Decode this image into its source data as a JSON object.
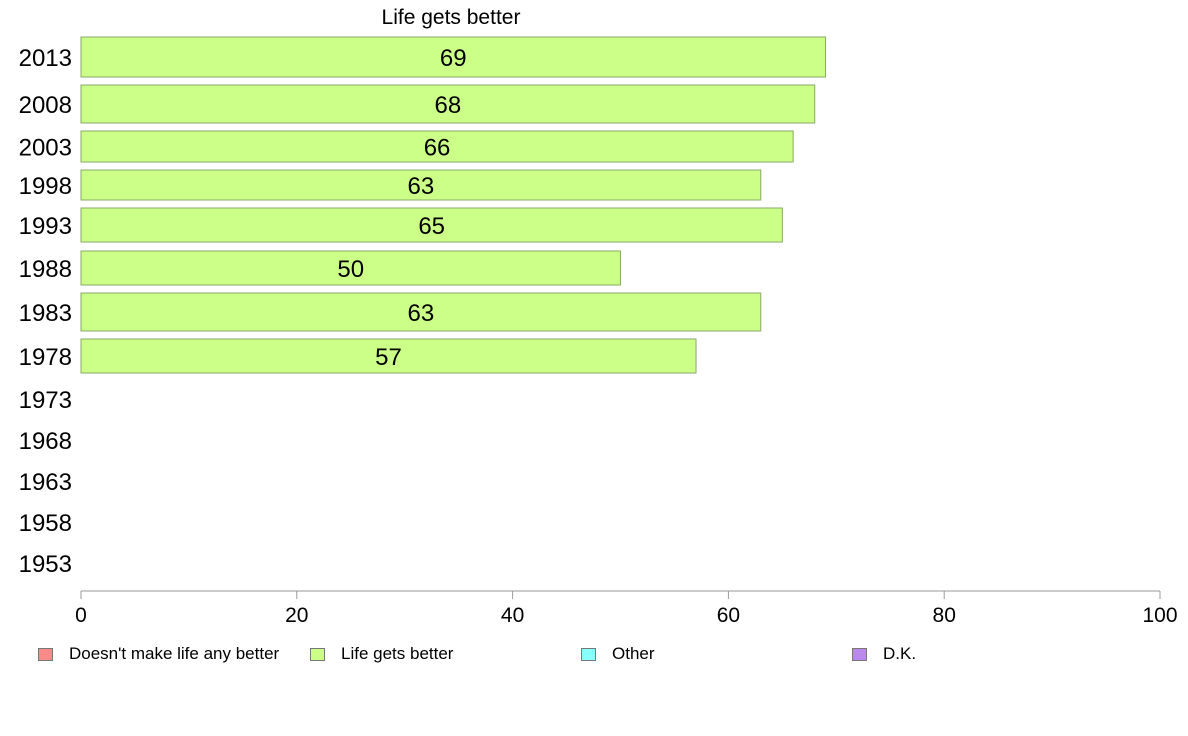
{
  "chart_data": {
    "type": "bar",
    "orientation": "horizontal",
    "title": "Life gets better",
    "categories": [
      "2013",
      "2008",
      "2003",
      "1998",
      "1993",
      "1988",
      "1983",
      "1978",
      "1973",
      "1968",
      "1963",
      "1958",
      "1953"
    ],
    "series": [
      {
        "name": "Life gets better",
        "values": [
          69,
          68,
          66,
          63,
          65,
          50,
          63,
          57,
          null,
          null,
          null,
          null,
          null
        ]
      }
    ],
    "xlim": [
      0,
      100
    ],
    "xticks": [
      0,
      20,
      40,
      60,
      80,
      100
    ],
    "grid": false,
    "legend_position": "bottom",
    "legend": [
      {
        "label": "Doesn't make life any better",
        "color": "#f88a8a"
      },
      {
        "label": "Life gets better",
        "color": "#ccff88"
      },
      {
        "label": "Other",
        "color": "#88ffff"
      },
      {
        "label": "D.K.",
        "color": "#bb88ee"
      }
    ],
    "bar_color": "#ccff88",
    "bar_stroke": "#88aa66"
  }
}
